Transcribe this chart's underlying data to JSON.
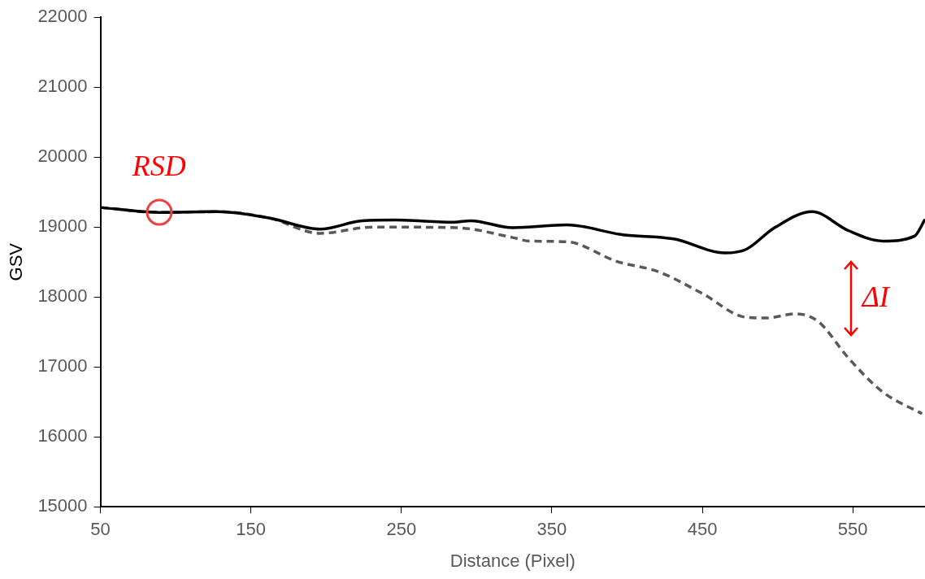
{
  "chart_data": {
    "type": "line",
    "xlabel": "Distance (Pixel)",
    "ylabel": "GSV",
    "xlim": [
      50,
      598
    ],
    "xticks": [
      50,
      150,
      250,
      350,
      450,
      550
    ],
    "ylim": [
      15000,
      22000
    ],
    "yticks": [
      15000,
      16000,
      17000,
      18000,
      19000,
      20000,
      21000,
      22000
    ],
    "grid": false,
    "legend": false,
    "marker": "none",
    "series": [
      {
        "color": "#000000",
        "line_style": "solid",
        "x": [
          50,
          89,
          128,
          162,
          196,
          224,
          246,
          285,
          296,
          324,
          360,
          397,
          431,
          465,
          479,
          498,
          523,
          547,
          570,
          591,
          598
        ],
        "values": [
          19280,
          19210,
          19220,
          19130,
          18970,
          19090,
          19100,
          19070,
          19090,
          18990,
          19030,
          18890,
          18830,
          18630,
          18680,
          18990,
          19220,
          18950,
          18800,
          18870,
          19110
        ]
      },
      {
        "color": "#595959",
        "line_style": "dashed",
        "x": [
          50,
          89,
          128,
          162,
          196,
          231,
          287,
          324,
          335,
          360,
          393,
          421,
          450,
          479,
          493,
          512,
          527,
          547,
          570,
          596
        ],
        "values": [
          19280,
          19210,
          19220,
          19130,
          18910,
          19000,
          18990,
          18850,
          18800,
          18790,
          18510,
          18360,
          18050,
          17710,
          17700,
          17760,
          17650,
          17130,
          16640,
          16330
        ]
      }
    ],
    "annotations": [
      {
        "text": "RSD",
        "x": 89,
        "y": 19210
      },
      "ΔI"
    ]
  }
}
